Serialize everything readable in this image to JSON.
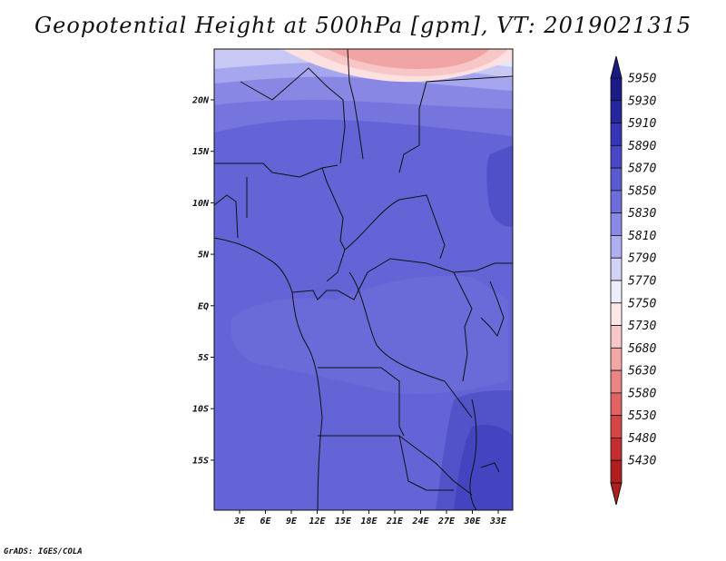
{
  "title": "Geopotential Height at 500hPa [gpm], VT: 2019021315",
  "credit": "GrADS: IGES/COLA",
  "map": {
    "lon_labels": [
      "3E",
      "6E",
      "9E",
      "12E",
      "15E",
      "18E",
      "21E",
      "24E",
      "27E",
      "30E",
      "33E"
    ],
    "lat_labels": [
      "20N",
      "15N",
      "10N",
      "5N",
      "EQ",
      "5S",
      "10S",
      "15S"
    ]
  },
  "colorbar": {
    "labels": [
      "5950",
      "5930",
      "5910",
      "5890",
      "5870",
      "5850",
      "5830",
      "5810",
      "5790",
      "5770",
      "5750",
      "5730",
      "5680",
      "5630",
      "5580",
      "5530",
      "5480",
      "5430"
    ],
    "colors": [
      "#1b1b86",
      "#2626a0",
      "#3535b7",
      "#4848c6",
      "#5b5bd1",
      "#6e6edb",
      "#8a8ae6",
      "#aeaef0",
      "#d2d2f7",
      "#ececfb",
      "#fde8e8",
      "#f8c8c8",
      "#f2a6a6",
      "#ea8585",
      "#e06464",
      "#d44646",
      "#c52e2e",
      "#b01e1e"
    ]
  }
}
